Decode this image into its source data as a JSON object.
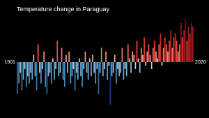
{
  "chart_data": {
    "type": "bar",
    "title": "Temperature change in Paraguay",
    "categories": [
      "1901",
      null,
      null,
      null,
      null,
      null,
      null,
      null,
      null,
      null,
      null,
      null,
      null,
      null,
      null,
      null,
      null,
      null,
      null,
      null,
      null,
      null,
      null,
      null,
      null,
      null,
      null,
      null,
      null,
      null,
      null,
      null,
      null,
      null,
      null,
      null,
      null,
      null,
      null,
      null,
      null,
      null,
      null,
      null,
      null,
      null,
      null,
      null,
      null,
      null,
      null,
      null,
      null,
      null,
      null,
      null,
      null,
      null,
      null,
      null,
      null,
      null,
      null,
      null,
      null,
      null,
      null,
      null,
      null,
      null,
      null,
      null,
      null,
      null,
      null,
      null,
      null,
      null,
      null,
      null,
      null,
      null,
      null,
      null,
      null,
      null,
      null,
      null,
      null,
      null,
      null,
      null,
      null,
      null,
      null,
      null,
      null,
      null,
      null,
      null,
      null,
      null,
      null,
      null,
      null,
      null,
      null,
      null,
      null,
      null,
      null,
      null,
      null,
      null,
      null,
      null,
      null,
      null,
      null,
      "2020"
    ],
    "values": [
      -0.9,
      -0.6,
      -0.3,
      -0.8,
      -0.5,
      -0.2,
      -0.7,
      -0.4,
      -0.6,
      -0.3,
      -0.5,
      0.2,
      -0.4,
      -0.8,
      0.5,
      -0.3,
      -0.6,
      -0.2,
      0.3,
      -0.7,
      -0.9,
      -0.4,
      -0.3,
      -0.6,
      0.1,
      -0.5,
      -0.2,
      0.6,
      -0.4,
      -0.3,
      0.4,
      -0.5,
      -0.7,
      0.2,
      -0.3,
      0.3,
      -0.6,
      -0.4,
      -0.2,
      -0.8,
      -0.3,
      -0.5,
      0.1,
      -0.4,
      -0.7,
      -0.2,
      0.3,
      -0.3,
      -0.5,
      0.1,
      -0.4,
      0.2,
      -0.3,
      -0.6,
      -0.2,
      -0.9,
      -0.3,
      0.4,
      -0.4,
      -0.2,
      0.3,
      -0.5,
      -0.1,
      -1.2,
      -0.4,
      -0.3,
      0.2,
      -0.6,
      -0.2,
      -0.4,
      -0.3,
      0.4,
      -0.5,
      -0.2,
      -0.4,
      0.5,
      0.1,
      -0.3,
      0.3,
      0.2,
      -0.2,
      0.6,
      0.1,
      -0.3,
      0.4,
      0.2,
      0.7,
      -0.1,
      0.3,
      0.5,
      0.2,
      -0.2,
      0.4,
      0.6,
      0.3,
      0.1,
      0.5,
      0.8,
      -0.1,
      0.4,
      0.7,
      0.5,
      0.3,
      0.6,
      0.9,
      0.4,
      0.7,
      0.8,
      0.6,
      0.3,
      0.5,
      1.1,
      0.7,
      0.9,
      1.2,
      0.6,
      1.0,
      0.8,
      1.1,
      1.0
    ],
    "ylim": [
      -1.3,
      1.3
    ],
    "grid": false,
    "tick_labels": "x"
  }
}
